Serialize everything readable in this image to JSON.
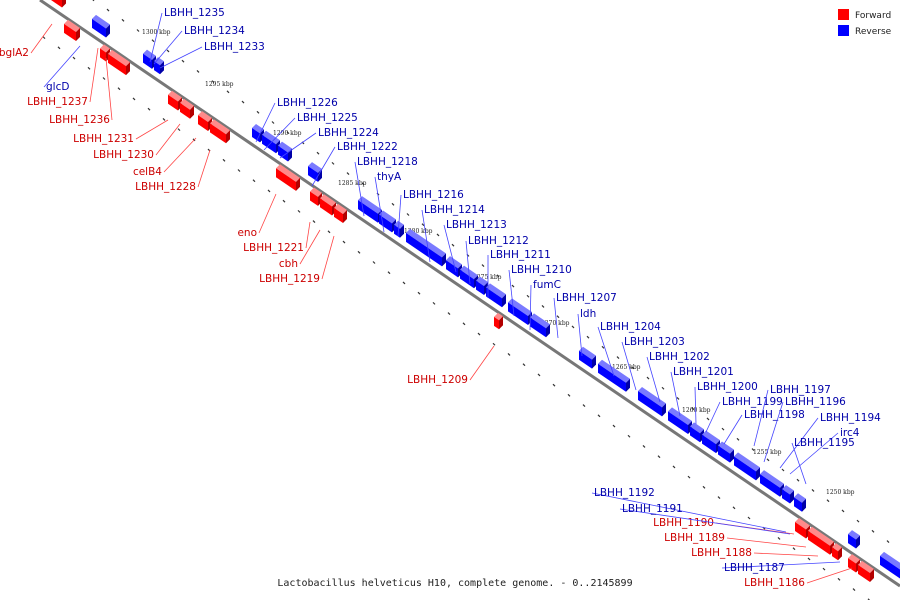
{
  "caption": "Lactobacillus helveticus H10, complete genome. - 0..2145899",
  "legend": {
    "placement": "top-right",
    "items": [
      {
        "label": "Forward",
        "color": "#ff0000"
      },
      {
        "label": "Reverse",
        "color": "#0000ff"
      }
    ]
  },
  "colors": {
    "forward": "#ff0000",
    "forward_label": "#cc0000",
    "reverse": "#0000ff",
    "reverse_label": "#0000aa",
    "axis": "#777777"
  },
  "scale_ticks": [
    "1300 kbp",
    "1295 kbp",
    "1290 kbp",
    "1285 kbp",
    "1280 kbp",
    "1275 kbp",
    "1270 kbp",
    "1265 kbp",
    "1260 kbp",
    "1255 kbp",
    "1250 kbp"
  ],
  "forward_genes": [
    "bglA2",
    "LBHH_1237",
    "LBHH_1236",
    "LBHH_1231",
    "LBHH_1230",
    "celB4",
    "LBHH_1228",
    "eno",
    "LBHH_1221",
    "cbh",
    "LBHH_1219",
    "LBHH_1209",
    "LBHH_1190",
    "LBHH_1189",
    "LBHH_1188",
    "LBHH_1186"
  ],
  "reverse_genes": [
    "LBHH_1235",
    "LBHH_1234",
    "LBHH_1233",
    "glcD",
    "LBHH_1226",
    "LBHH_1225",
    "LBHH_1224",
    "LBHH_1222",
    "LBHH_1218",
    "thyA",
    "LBHH_1216",
    "LBHH_1214",
    "LBHH_1213",
    "LBHH_1212",
    "LBHH_1211",
    "LBHH_1210",
    "fumC",
    "LBHH_1207",
    "ldh",
    "LBHH_1204",
    "LBHH_1203",
    "LBHH_1202",
    "LBHH_1201",
    "LBHH_1200",
    "LBHH_1199",
    "LBHH_1198",
    "LBHH_1197",
    "LBHH_1196",
    "LBHH_1194",
    "irc4",
    "LBHH_1195",
    "LBHH_1192",
    "LBHH_1191",
    "LBHH_1187"
  ]
}
